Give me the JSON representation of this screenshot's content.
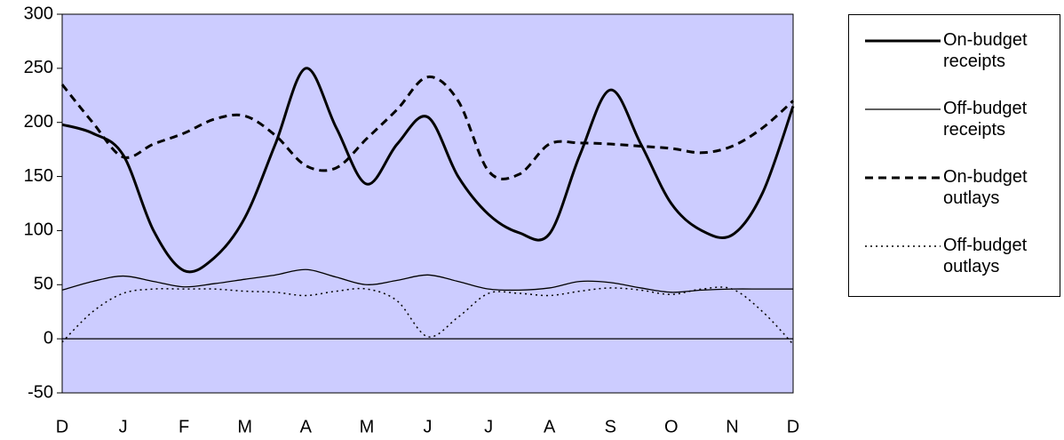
{
  "chart_data": {
    "type": "line",
    "categories": [
      "D",
      null,
      "J",
      null,
      "F",
      null,
      "M",
      null,
      "A",
      null,
      "M",
      null,
      "J",
      null,
      "J",
      null,
      "A",
      null,
      "S",
      null,
      "O",
      null,
      "N",
      null,
      "D"
    ],
    "ylim": [
      -50,
      300
    ],
    "yticks": [
      -50,
      0,
      50,
      100,
      150,
      200,
      250,
      300
    ],
    "plot_background": "#ccccff",
    "legend_position": "right",
    "series": [
      {
        "name": "On-budget receipts",
        "color": "#000000",
        "line_style": "solid",
        "line_width": 3,
        "values": [
          198,
          190,
          170,
          100,
          63,
          75,
          112,
          180,
          250,
          195,
          143,
          180,
          205,
          150,
          115,
          98,
          97,
          170,
          230,
          180,
          125,
          100,
          96,
          135,
          215
        ]
      },
      {
        "name": "Off-budget receipts",
        "color": "#000000",
        "line_style": "solid",
        "line_width": 1.3,
        "values": [
          45,
          53,
          58,
          53,
          48,
          51,
          55,
          59,
          64,
          57,
          50,
          54,
          59,
          53,
          46,
          45,
          47,
          53,
          52,
          47,
          43,
          45,
          46,
          46,
          46
        ]
      },
      {
        "name": "On-budget outlays",
        "color": "#000000",
        "line_style": "dashed",
        "line_width": 3,
        "values": [
          235,
          200,
          168,
          180,
          190,
          203,
          206,
          188,
          160,
          158,
          185,
          212,
          242,
          220,
          155,
          152,
          180,
          181,
          180,
          178,
          176,
          172,
          178,
          195,
          220
        ]
      },
      {
        "name": "Off-budget outlays",
        "color": "#000000",
        "line_style": "dotted",
        "line_width": 1.5,
        "values": [
          -3,
          25,
          42,
          46,
          46,
          46,
          44,
          43,
          40,
          44,
          46,
          35,
          2,
          20,
          42,
          42,
          40,
          44,
          47,
          45,
          41,
          46,
          46,
          25,
          -5
        ]
      }
    ]
  }
}
